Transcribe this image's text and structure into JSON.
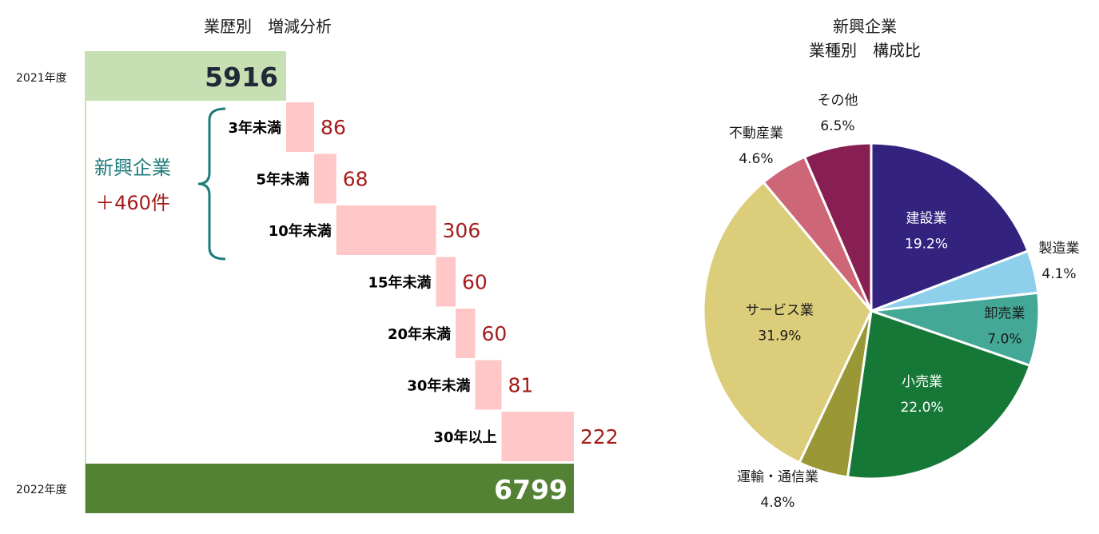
{
  "chart_data": [
    {
      "type": "bar",
      "title": "業歴別　増減分析",
      "start": {
        "label": "2021年度",
        "value": 5916
      },
      "end": {
        "label": "2022年度",
        "value": 6799
      },
      "categories": [
        "3年未満",
        "5年未満",
        "10年未満",
        "15年未満",
        "20年未満",
        "30年未満",
        "30年以上"
      ],
      "values": [
        86,
        68,
        306,
        60,
        60,
        81,
        222
      ],
      "bracket": {
        "label": "新興企業",
        "value_label": "＋460件",
        "covers": [
          "3年未満",
          "5年未満",
          "10年未満"
        ]
      },
      "colors": {
        "start": "#c6e0b4",
        "end": "#548235",
        "increase": "#ffc7c7",
        "value_text": "#a51c1c",
        "bracket": "#1f7b7b"
      }
    },
    {
      "type": "pie",
      "title_line1": "新興企業",
      "title_line2": "業種別　構成比",
      "slices": [
        {
          "label": "建設業",
          "value": 19.2,
          "display": "19.2%",
          "color": "#33237f"
        },
        {
          "label": "製造業",
          "value": 4.1,
          "display": "4.1%",
          "color": "#8ecfec"
        },
        {
          "label": "卸売業",
          "value": 7.0,
          "display": "7.0%",
          "color": "#44a897"
        },
        {
          "label": "小売業",
          "value": 22.0,
          "display": "22.0%",
          "color": "#167837"
        },
        {
          "label": "運輸・通信業",
          "value": 4.8,
          "display": "4.8%",
          "color": "#9a9736"
        },
        {
          "label": "サービス業",
          "value": 31.9,
          "display": "31.9%",
          "color": "#dbcd7a"
        },
        {
          "label": "不動産業",
          "value": 4.6,
          "display": "4.6%",
          "color": "#cd6777"
        },
        {
          "label": "その他",
          "value": 6.5,
          "display": "6.5%",
          "color": "#881f52"
        }
      ]
    }
  ]
}
